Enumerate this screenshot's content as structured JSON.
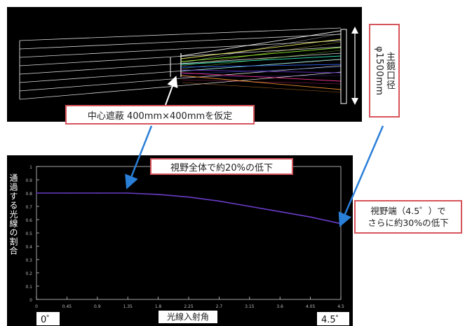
{
  "top_panel": {
    "aperture_label_line1": "主鏡口径",
    "aperture_label_line2": "φ1500mm",
    "obstruction_label": "中心遮蔽 400mm×400mmを仮定",
    "ray_colors": [
      "#ffffff",
      "#ffff66",
      "#99ff33",
      "#33ffcc",
      "#3366ff",
      "#6633cc",
      "#ff3399",
      "#ff9933"
    ]
  },
  "bottom_panel": {
    "drop_all_label": "視野全体で約20%の低下",
    "edge_drop_line1": "視野端（4.5゜）で",
    "edge_drop_line2": "さらに約30%の低下",
    "ylabel": "通過する光線の割合",
    "xlabel": "光線入射角",
    "x_min_label": "0゜",
    "x_max_label": "4.5゜",
    "xaxis_small_text": "...",
    "accent_colors": {
      "callout_border": "#d6545b",
      "arrow": "#2a7fd8",
      "curve": "#6a3cc8"
    }
  },
  "chart_data": {
    "type": "line",
    "title": "",
    "xlabel": "光線入射角",
    "ylabel": "通過する光線の割合",
    "xlim": [
      0,
      4.5
    ],
    "ylim": [
      0,
      1.0
    ],
    "x_ticks": [
      "0",
      "0.45",
      "0.9",
      "1.35",
      "1.8",
      "2.25",
      "2.7",
      "3.15",
      "3.6",
      "4.05",
      "4.5"
    ],
    "y_ticks": [
      "0",
      "0.1",
      "0.2",
      "0.3",
      "0.4",
      "0.5",
      "0.6",
      "0.7",
      "0.8",
      "0.9",
      "1"
    ],
    "series": [
      {
        "x": [
          0,
          0.45,
          0.9,
          1.35,
          1.8,
          2.25,
          2.7,
          3.15,
          3.6,
          4.05,
          4.5
        ],
        "values": [
          0.8,
          0.8,
          0.8,
          0.8,
          0.79,
          0.77,
          0.74,
          0.7,
          0.66,
          0.62,
          0.57
        ]
      }
    ]
  }
}
